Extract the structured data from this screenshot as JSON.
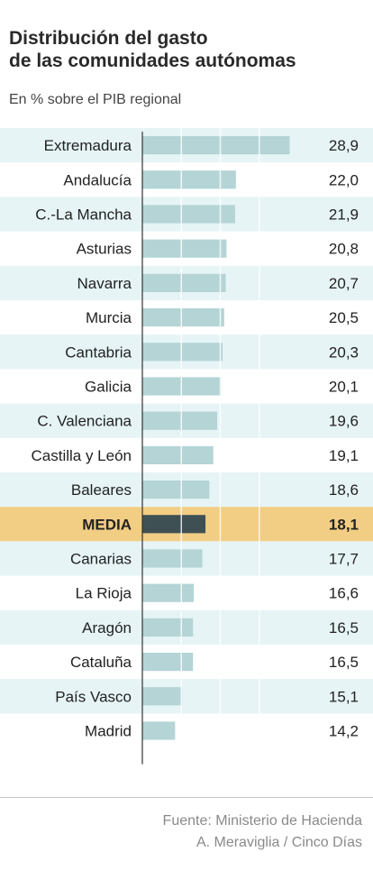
{
  "header": {
    "title_line1": "Distribución del gasto",
    "title_line2": "de las comunidades autónomas",
    "subtitle": "En % sobre el PIB regional"
  },
  "footer": {
    "source": "Fuente: Ministerio de Hacienda",
    "credit": "A. Meraviglia / Cinco Días"
  },
  "colors": {
    "bar": "#b4d4d6",
    "bar_highlight": "#3f5055",
    "row_band": "#e6f4f6",
    "row_highlight": "#f2ce84",
    "axis": "#333333"
  },
  "chart_data": {
    "type": "bar",
    "orientation": "horizontal",
    "title": "Distribución del gasto de las comunidades autónomas",
    "subtitle": "En % sobre el PIB regional",
    "categories": [
      "Extremadura",
      "Andalucía",
      "C.-La Mancha",
      "Asturias",
      "Navarra",
      "Murcia",
      "Cantabria",
      "Galicia",
      "C. Valenciana",
      "Castilla y León",
      "Baleares",
      "MEDIA",
      "Canarias",
      "La Rioja",
      "Aragón",
      "Cataluña",
      "País Vasco",
      "Madrid"
    ],
    "values": [
      28.9,
      22.0,
      21.9,
      20.8,
      20.7,
      20.5,
      20.3,
      20.1,
      19.6,
      19.1,
      18.6,
      18.1,
      17.7,
      16.6,
      16.5,
      16.5,
      15.1,
      14.2
    ],
    "value_labels": [
      "28,9",
      "22,0",
      "21,9",
      "20,8",
      "20,7",
      "20,5",
      "20,3",
      "20,1",
      "19,6",
      "19,1",
      "18,6",
      "18,1",
      "17,7",
      "16,6",
      "16,5",
      "16,5",
      "15,1",
      "14,2"
    ],
    "highlight": "MEDIA",
    "xlim": [
      10,
      30
    ],
    "grid": true
  }
}
